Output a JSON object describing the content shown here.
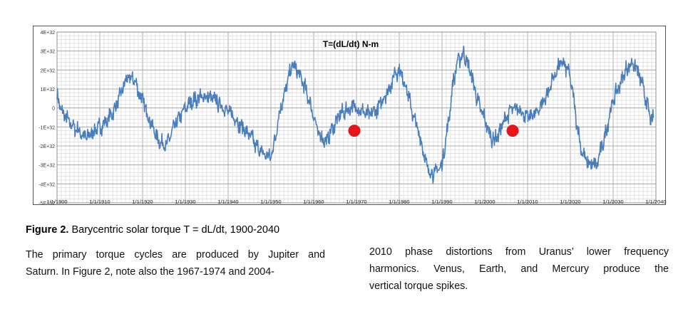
{
  "chart_data": {
    "type": "line",
    "title": "T=(dL/dt) N-m",
    "xlabel": "",
    "ylabel": "",
    "x_tick_labels": [
      "1/1/1900",
      "1/1/1910",
      "1/1/1920",
      "1/1/1930",
      "1/1/1940",
      "1/1/1950",
      "1/1/1960",
      "1/1/1970",
      "1/1/1980",
      "1/1/1990",
      "1/1/2000",
      "1/1/2010",
      "1/1/2020",
      "1/1/2030",
      "1/1/2040"
    ],
    "y_tick_labels": [
      "4E+32",
      "3E+32",
      "2E+32",
      "1E+32",
      "0",
      "-1E+32",
      "-2E+32",
      "-3E+32",
      "-4E+32",
      "-5E+32"
    ],
    "xlim": [
      1900,
      2040
    ],
    "ylim": [
      -5,
      4
    ],
    "y_unit_multiplier": "1E+32",
    "grid": true,
    "line_color": "#4a7ebb",
    "marker_color": "#e8141c",
    "series": [
      {
        "x": [
          1900,
          1901,
          1903,
          1905,
          1907,
          1908,
          1910,
          1912,
          1914,
          1915.5,
          1916.5,
          1918,
          1920,
          1922,
          1924,
          1925.5,
          1927,
          1929,
          1931,
          1933,
          1935,
          1937,
          1939,
          1941,
          1943,
          1945,
          1946.5,
          1948,
          1950,
          1951,
          1952,
          1953.5,
          1955,
          1957,
          1958.5,
          1960,
          1961,
          1962,
          1963,
          1964,
          1966,
          1968,
          1969,
          1970,
          1972,
          1973,
          1975,
          1976,
          1978,
          1979,
          1980,
          1981.5,
          1983,
          1984.5,
          1985.5,
          1986.5,
          1988,
          1990,
          1991.5,
          1992.5,
          1993.5,
          1995,
          1997,
          1998.5,
          2000,
          2001,
          2002,
          2003,
          2004,
          2006,
          2008,
          2009,
          2010,
          2012,
          2013,
          2015,
          2016,
          2018,
          2019.5,
          2020.5,
          2021.5,
          2022.5,
          2024,
          2026,
          2028,
          2029,
          2030,
          2031.5,
          2033,
          2034.5,
          2036,
          2037.5,
          2038.5,
          2039,
          2039.5
        ],
        "y": [
          0.8,
          -0.2,
          -0.8,
          -1.2,
          -1.6,
          -1.3,
          -1.0,
          -0.6,
          0.2,
          1.1,
          1.6,
          1.5,
          0.4,
          -0.8,
          -1.8,
          -2.0,
          -1.2,
          -0.3,
          0.2,
          0.5,
          0.6,
          0.4,
          0,
          -0.4,
          -0.9,
          -1.4,
          -2.0,
          -2.4,
          -2.6,
          -1.6,
          -0.2,
          1.0,
          2.3,
          1.6,
          0.7,
          -0.4,
          -1.3,
          -1.6,
          -1.8,
          -1.2,
          -0.4,
          -0.1,
          0.1,
          0,
          -0.3,
          -0.4,
          0,
          0.4,
          1.2,
          1.9,
          2.0,
          1.2,
          -0.2,
          -1.3,
          -2.1,
          -3.2,
          -3.5,
          -3.0,
          -0.8,
          1.2,
          2.4,
          2.9,
          1.6,
          0.2,
          -0.6,
          -1.3,
          -1.7,
          -1.5,
          -0.9,
          -0.1,
          0,
          -0.3,
          -0.5,
          -0.3,
          0.1,
          0.9,
          1.6,
          2.4,
          2.0,
          0.9,
          -0.8,
          -2.2,
          -2.9,
          -3.1,
          -1.6,
          -0.5,
          0.4,
          1.2,
          2.0,
          2.4,
          1.9,
          0.6,
          -0.3,
          -0.8,
          -0.5
        ],
        "vertical_spike_amplitude": 0.7
      }
    ],
    "markers": [
      {
        "x": 1969.5,
        "y": -1.2
      },
      {
        "x": 2006.5,
        "y": -1.2
      }
    ]
  },
  "caption": {
    "label": "Figure 2.",
    "text": " Barycentric solar torque T = dL/dt, 1900-2040"
  },
  "paragraphs": {
    "left_lines": [
      "The primary torque cycles are produced by Jupiter and",
      "Saturn. In Figure 2, note also the 1967-1974 and 2004-"
    ],
    "right_lines": [
      "2010 phase distortions from Uranus’ lower frequency",
      "harmonics.  Venus, Earth, and Mercury produce the",
      "vertical torque spikes."
    ]
  }
}
